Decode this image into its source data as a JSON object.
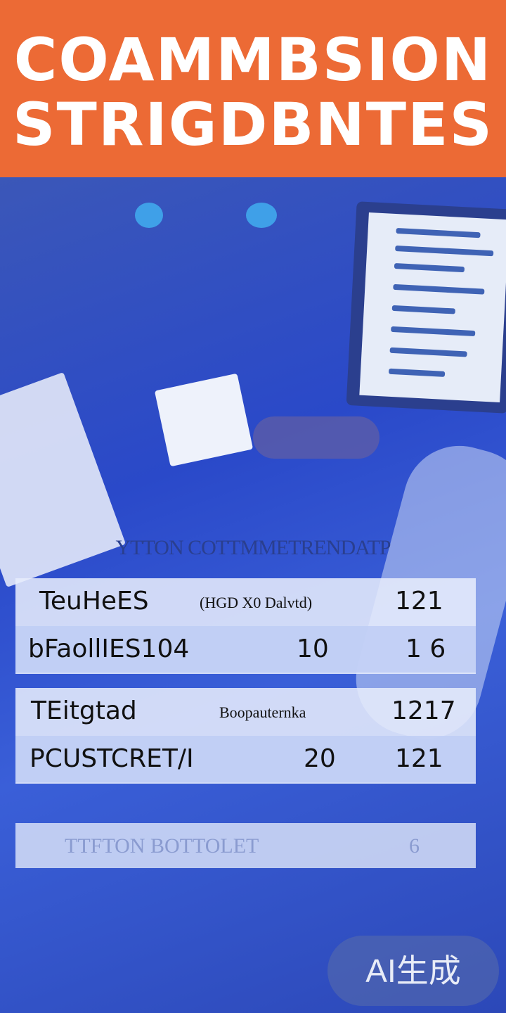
{
  "header": {
    "line1": "COAMMBSION",
    "line2": "STRIGDBNTES",
    "color": "#ec6a35"
  },
  "caption": "YTTON COTTMMETRENDATP",
  "table1": {
    "rows": [
      {
        "label": "TeuHeES",
        "note": "(HGD X0 Dalvtd)",
        "value": "",
        "right": "121"
      },
      {
        "label": "bFaollIES104",
        "note": "",
        "value": "10",
        "right": "1 6"
      }
    ]
  },
  "table2": {
    "rows": [
      {
        "label": "TEitgtad",
        "note": "Boopauternka",
        "value": "",
        "right": "1217"
      },
      {
        "label": "PCUSTCRET/I",
        "note": "",
        "value": "20",
        "right": "121"
      }
    ]
  },
  "footer": {
    "label": "TTFTON BOTTOLET",
    "right": "6"
  },
  "watermark": "AI生成",
  "colors": {
    "background": "#2f4fc8",
    "panel": "#e6ecfc"
  }
}
